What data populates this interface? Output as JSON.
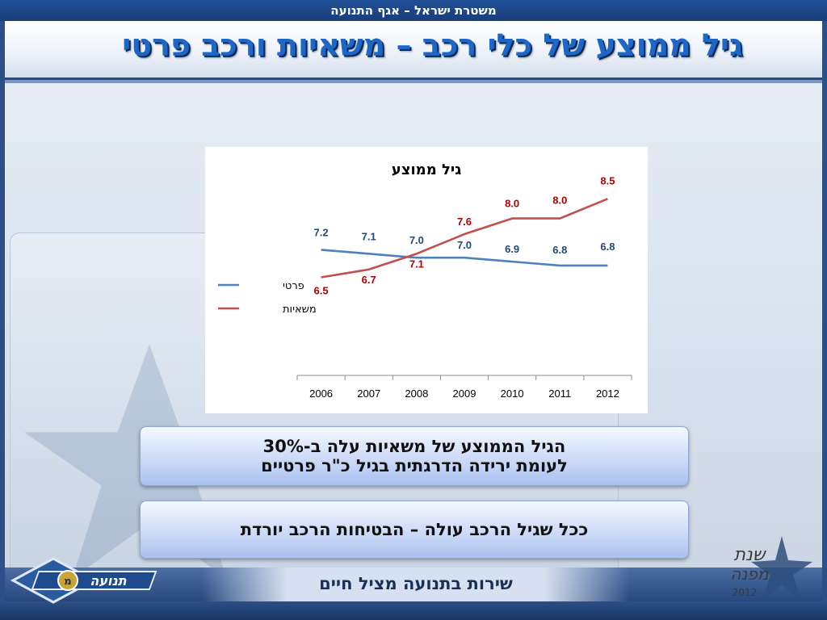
{
  "header": {
    "org_line": "משטרת ישראל – אגף התנועה"
  },
  "title": "גיל ממוצע של כלי רכב – משאיות ורכב פרטי",
  "chart_data": {
    "type": "line",
    "title": "גיל ממוצע",
    "x": [
      "2006",
      "2007",
      "2008",
      "2009",
      "2010",
      "2011",
      "2012"
    ],
    "series": [
      {
        "name": "פרטי",
        "values": [
          7.2,
          7.1,
          7.0,
          7.0,
          6.9,
          6.8,
          6.8
        ],
        "color": "#4f81bd",
        "label_color": "#1f497d"
      },
      {
        "name": "משאיות",
        "values": [
          6.5,
          6.7,
          7.1,
          7.6,
          8.0,
          8.0,
          8.5
        ],
        "color": "#c0504d",
        "label_color": "#b00000"
      }
    ],
    "legend": "left",
    "grid": false,
    "ylim": [
      4.0,
      9.0
    ]
  },
  "callouts": {
    "first_line1": "הגיל הממוצע של משאיות עלה ב-30%",
    "first_line2": "לעומת ירידה הדרגתית בגיל כ\"ר פרטיים",
    "second": "ככל שגיל הרכב עולה – הבטיחות הרכב יורדת"
  },
  "footer": {
    "slogan": "שירות בתנועה מציל חיים"
  },
  "logos": {
    "left_text": "תנועה",
    "right_text_1": "שנת",
    "right_text_2": "מפנה",
    "right_year": "2012"
  }
}
